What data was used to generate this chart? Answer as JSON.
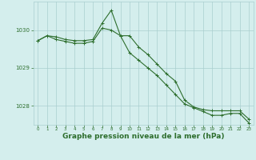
{
  "background_color": "#d4eeed",
  "grid_color": "#aacfcf",
  "line_color": "#2d6e2d",
  "marker_color": "#2d6e2d",
  "xlabel": "Graphe pression niveau de la mer (hPa)",
  "xlabel_fontsize": 6.5,
  "ylim": [
    1027.5,
    1030.75
  ],
  "xlim": [
    -0.5,
    23.5
  ],
  "yticks": [
    1028,
    1029,
    1030
  ],
  "xticks": [
    0,
    1,
    2,
    3,
    4,
    5,
    6,
    7,
    8,
    9,
    10,
    11,
    12,
    13,
    14,
    15,
    16,
    17,
    18,
    19,
    20,
    21,
    22,
    23
  ],
  "series1_x": [
    0,
    1,
    2,
    3,
    4,
    5,
    6,
    7,
    8,
    9,
    10,
    11,
    12,
    13,
    14,
    15,
    16,
    17,
    18,
    19,
    20,
    21,
    22,
    23
  ],
  "series1_y": [
    1029.72,
    1029.85,
    1029.82,
    1029.75,
    1029.72,
    1029.72,
    1029.75,
    1030.18,
    1030.52,
    1029.85,
    1029.85,
    1029.55,
    1029.35,
    1029.1,
    1028.85,
    1028.65,
    1028.15,
    1027.97,
    1027.9,
    1027.87,
    1027.87,
    1027.87,
    1027.87,
    1027.65
  ],
  "series2_x": [
    0,
    1,
    2,
    3,
    4,
    5,
    6,
    7,
    8,
    9,
    10,
    11,
    12,
    13,
    14,
    15,
    16,
    17,
    18,
    19,
    20,
    21,
    22,
    23
  ],
  "series2_y": [
    1029.72,
    1029.85,
    1029.75,
    1029.7,
    1029.65,
    1029.65,
    1029.7,
    1030.05,
    1030.0,
    1029.85,
    1029.4,
    1029.2,
    1029.0,
    1028.8,
    1028.55,
    1028.3,
    1028.05,
    1027.95,
    1027.85,
    1027.75,
    1027.75,
    1027.8,
    1027.8,
    1027.55
  ]
}
